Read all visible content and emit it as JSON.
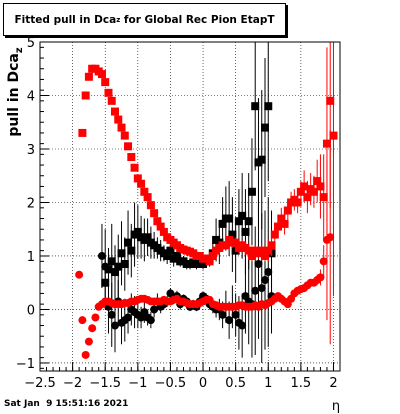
{
  "chart_data": {
    "type": "scatter",
    "title_main": "Fitted pull in Dca",
    "title_sub": "z",
    "title_rest": " for Global Rec Pion EtapT",
    "ylabel_main": "pull in Dca",
    "ylabel_sub": "z",
    "xlabel": "η",
    "xlim": [
      -2.5,
      2.1
    ],
    "ylim": [
      -1.15,
      5
    ],
    "xticks": [
      "−2.5",
      "−2",
      "−1.5",
      "−1",
      "−0.5",
      "0",
      "0.5",
      "1",
      "1.5",
      "2"
    ],
    "yticks": [
      "−1",
      "0",
      "1",
      "2",
      "3",
      "4",
      "5"
    ],
    "grid": true,
    "series": [
      {
        "color": "#000000",
        "marker": "square",
        "x": [
          -1.5,
          -1.45,
          -1.4,
          -1.35,
          -1.3,
          -1.25,
          -1.2,
          -1.15,
          -1.1,
          -1.05,
          -1.0,
          -0.95,
          -0.9,
          -0.85,
          -0.8,
          -0.75,
          -0.7,
          -0.65,
          -0.6,
          -0.55,
          -0.5,
          -0.45,
          -0.4,
          -0.35,
          -0.3,
          -0.25,
          -0.2,
          -0.15,
          -0.1,
          -0.05,
          0.0,
          0.05,
          0.1,
          0.15,
          0.2,
          0.25,
          0.3,
          0.35,
          0.4,
          0.45,
          0.5,
          0.55,
          0.6,
          0.65,
          0.7,
          0.75,
          0.8,
          0.85,
          0.9,
          0.95,
          1.0,
          1.05
        ],
        "y": [
          0.5,
          0.75,
          0.9,
          0.7,
          0.8,
          1.05,
          0.85,
          1.25,
          1.1,
          1.4,
          1.45,
          1.35,
          1.3,
          1.35,
          1.25,
          1.2,
          1.15,
          1.1,
          1.05,
          1.0,
          1.1,
          0.95,
          1.0,
          0.9,
          0.9,
          0.85,
          0.85,
          0.88,
          0.85,
          0.9,
          0.85,
          0.9,
          0.95,
          1.05,
          1.3,
          1.25,
          1.6,
          1.7,
          1.7,
          1.4,
          1.1,
          1.65,
          1.75,
          1.45,
          1.65,
          2.2,
          3.8,
          2.75,
          2.8,
          3.4,
          3.8,
          1.05
        ],
        "err": [
          0.5,
          0.4,
          0.7,
          0.5,
          0.6,
          0.6,
          0.5,
          0.6,
          0.5,
          0.6,
          0.5,
          0.4,
          0.4,
          0.35,
          0.3,
          0.25,
          0.2,
          0.2,
          0.15,
          0.15,
          0.15,
          0.15,
          0.12,
          0.1,
          0.1,
          0.1,
          0.1,
          0.1,
          0.1,
          0.1,
          0.1,
          0.1,
          0.15,
          0.2,
          0.4,
          0.4,
          0.5,
          0.6,
          0.7,
          0.7,
          0.6,
          0.6,
          0.8,
          0.8,
          0.9,
          1.0,
          1.2,
          1.2,
          1.3,
          1.3,
          1.4,
          0.8
        ]
      },
      {
        "color": "#000000",
        "marker": "circle",
        "x": [
          -1.55,
          -1.5,
          -1.45,
          -1.4,
          -1.35,
          -1.3,
          -1.25,
          -1.2,
          -1.15,
          -1.1,
          -1.05,
          -1.0,
          -0.95,
          -0.9,
          -0.85,
          -0.8,
          -0.75,
          -0.7,
          -0.65,
          -0.6,
          -0.55,
          -0.5,
          -0.45,
          -0.4,
          -0.35,
          -0.3,
          -0.25,
          -0.2,
          -0.15,
          -0.1,
          -0.05,
          0.0,
          0.05,
          0.1,
          0.15,
          0.2,
          0.25,
          0.3,
          0.35,
          0.4,
          0.45,
          0.5,
          0.55,
          0.6,
          0.65,
          0.7,
          0.75,
          0.8,
          0.85,
          0.9,
          0.95,
          1.0,
          1.05
        ],
        "y": [
          1.0,
          0.8,
          0.05,
          -0.1,
          -0.3,
          0.15,
          -0.25,
          -0.2,
          -0.15,
          0.0,
          -0.05,
          -0.1,
          -0.15,
          -0.05,
          -0.15,
          -0.2,
          0.0,
          0.15,
          0.05,
          0.1,
          0.15,
          0.3,
          0.2,
          0.25,
          0.1,
          0.2,
          0.15,
          0.05,
          0.1,
          0.05,
          0.15,
          0.25,
          0.2,
          0.1,
          0.05,
          0.0,
          0.0,
          -0.1,
          0.05,
          -0.2,
          0.05,
          -0.1,
          -0.25,
          -0.3,
          0.25,
          0.15,
          0.1,
          0.35,
          0.85,
          0.4,
          0.55,
          0.7,
          0.25
        ],
        "err": [
          0.6,
          0.7,
          0.5,
          0.6,
          0.5,
          0.4,
          0.4,
          0.4,
          0.3,
          0.3,
          0.3,
          0.25,
          0.2,
          0.2,
          0.15,
          0.15,
          0.15,
          0.15,
          0.12,
          0.1,
          0.1,
          0.1,
          0.1,
          0.1,
          0.1,
          0.08,
          0.08,
          0.08,
          0.08,
          0.08,
          0.08,
          0.08,
          0.1,
          0.1,
          0.12,
          0.15,
          0.2,
          0.25,
          0.3,
          0.35,
          0.4,
          0.4,
          0.5,
          0.6,
          0.7,
          0.8,
          1.0,
          1.2,
          1.4,
          1.4,
          1.3,
          1.4,
          0.7
        ]
      },
      {
        "color": "#ff0000",
        "marker": "square",
        "x": [
          -1.85,
          -1.8,
          -1.75,
          -1.7,
          -1.65,
          -1.6,
          -1.55,
          -1.5,
          -1.45,
          -1.4,
          -1.35,
          -1.3,
          -1.25,
          -1.2,
          -1.15,
          -1.1,
          -1.05,
          -1.0,
          -0.95,
          -0.9,
          -0.85,
          -0.8,
          -0.75,
          -0.7,
          -0.65,
          -0.6,
          -0.55,
          -0.5,
          -0.45,
          -0.4,
          -0.35,
          -0.3,
          -0.25,
          -0.2,
          -0.15,
          -0.1,
          -0.05,
          0.0,
          0.05,
          0.1,
          0.15,
          0.2,
          0.25,
          0.3,
          0.35,
          0.4,
          0.45,
          0.5,
          0.55,
          0.6,
          0.65,
          0.7,
          0.75,
          0.8,
          0.85,
          0.9,
          0.95,
          1.0,
          1.05,
          1.1,
          1.15,
          1.2,
          1.25,
          1.3,
          1.35,
          1.4,
          1.45,
          1.5,
          1.55,
          1.6,
          1.65,
          1.7,
          1.75,
          1.8,
          1.85,
          1.9,
          1.95,
          2.0
        ],
        "y": [
          3.3,
          4.0,
          4.35,
          4.5,
          4.5,
          4.45,
          4.4,
          4.25,
          4.05,
          3.9,
          3.7,
          3.55,
          3.4,
          3.25,
          3.05,
          2.85,
          2.65,
          2.45,
          2.35,
          2.2,
          2.1,
          1.95,
          1.8,
          1.65,
          1.55,
          1.45,
          1.35,
          1.3,
          1.25,
          1.2,
          1.15,
          1.12,
          1.1,
          1.08,
          1.05,
          1.0,
          1.0,
          0.95,
          0.95,
          0.9,
          1.0,
          1.1,
          1.15,
          1.2,
          1.2,
          1.3,
          1.25,
          1.25,
          1.15,
          1.2,
          1.15,
          1.1,
          1.0,
          1.1,
          1.05,
          1.1,
          1.0,
          1.1,
          1.2,
          1.4,
          1.55,
          1.7,
          1.6,
          1.85,
          2.0,
          2.05,
          2.0,
          2.2,
          2.3,
          2.1,
          2.25,
          2.2,
          2.4,
          2.3,
          2.1,
          3.1,
          3.9,
          3.25
        ],
        "err": [
          0.05,
          0.05,
          0.05,
          0.05,
          0.05,
          0.05,
          0.05,
          0.05,
          0.05,
          0.05,
          0.05,
          0.05,
          0.05,
          0.05,
          0.05,
          0.05,
          0.05,
          0.05,
          0.05,
          0.05,
          0.05,
          0.05,
          0.05,
          0.05,
          0.05,
          0.05,
          0.05,
          0.05,
          0.05,
          0.05,
          0.05,
          0.05,
          0.05,
          0.05,
          0.05,
          0.05,
          0.05,
          0.05,
          0.05,
          0.05,
          0.05,
          0.05,
          0.05,
          0.05,
          0.05,
          0.05,
          0.1,
          0.1,
          0.1,
          0.1,
          0.1,
          0.1,
          0.1,
          0.1,
          0.1,
          0.1,
          0.1,
          0.2,
          0.2,
          0.2,
          0.2,
          0.2,
          0.2,
          0.2,
          0.2,
          0.2,
          0.2,
          0.2,
          0.3,
          0.3,
          0.3,
          0.3,
          0.4,
          0.6,
          0.8,
          1.8,
          2.0,
          3.0
        ]
      },
      {
        "color": "#ff0000",
        "marker": "circle",
        "x": [
          -1.9,
          -1.85,
          -1.8,
          -1.75,
          -1.7,
          -1.65,
          -1.6,
          -1.55,
          -1.5,
          -1.45,
          -1.4,
          -1.35,
          -1.3,
          -1.25,
          -1.2,
          -1.15,
          -1.1,
          -1.05,
          -1.0,
          -0.95,
          -0.9,
          -0.85,
          -0.8,
          -0.75,
          -0.7,
          -0.65,
          -0.6,
          -0.55,
          -0.5,
          -0.45,
          -0.4,
          -0.35,
          -0.3,
          -0.25,
          -0.2,
          -0.15,
          -0.1,
          -0.05,
          0.0,
          0.05,
          0.1,
          0.15,
          0.2,
          0.25,
          0.3,
          0.35,
          0.4,
          0.45,
          0.5,
          0.55,
          0.6,
          0.65,
          0.7,
          0.75,
          0.8,
          0.85,
          0.9,
          0.95,
          1.0,
          1.05,
          1.1,
          1.15,
          1.2,
          1.25,
          1.3,
          1.35,
          1.4,
          1.45,
          1.5,
          1.55,
          1.6,
          1.65,
          1.7,
          1.75,
          1.8,
          1.85,
          1.9,
          1.95
        ],
        "y": [
          0.65,
          -0.2,
          -0.85,
          -0.6,
          -0.35,
          -0.15,
          0.05,
          0.1,
          0.15,
          0.15,
          0.12,
          0.1,
          0.1,
          0.1,
          0.12,
          0.12,
          0.15,
          0.15,
          0.18,
          0.2,
          0.2,
          0.18,
          0.15,
          0.15,
          0.15,
          0.15,
          0.18,
          0.15,
          0.15,
          0.18,
          0.2,
          0.15,
          0.15,
          0.12,
          0.1,
          0.1,
          0.1,
          0.12,
          0.15,
          0.18,
          0.18,
          0.1,
          0.08,
          0.05,
          0.05,
          0.05,
          0.05,
          0.05,
          0.05,
          0.08,
          0.08,
          0.05,
          0.05,
          0.05,
          0.08,
          0.05,
          0.1,
          0.08,
          0.12,
          0.15,
          0.2,
          0.25,
          0.2,
          0.15,
          0.1,
          0.2,
          0.3,
          0.35,
          0.38,
          0.4,
          0.45,
          0.5,
          0.5,
          0.55,
          0.6,
          0.9,
          1.3,
          1.35
        ],
        "err": [
          0.05,
          0.05,
          0.05,
          0.05,
          0.05,
          0.05,
          0.05,
          0.05,
          0.05,
          0.05,
          0.05,
          0.05,
          0.05,
          0.05,
          0.05,
          0.05,
          0.05,
          0.05,
          0.05,
          0.05,
          0.05,
          0.05,
          0.05,
          0.05,
          0.05,
          0.05,
          0.05,
          0.05,
          0.05,
          0.05,
          0.05,
          0.05,
          0.05,
          0.05,
          0.05,
          0.05,
          0.05,
          0.05,
          0.05,
          0.05,
          0.05,
          0.05,
          0.05,
          0.05,
          0.05,
          0.05,
          0.05,
          0.05,
          0.05,
          0.05,
          0.05,
          0.05,
          0.05,
          0.05,
          0.05,
          0.05,
          0.05,
          0.05,
          0.05,
          0.05,
          0.05,
          0.05,
          0.05,
          0.05,
          0.05,
          0.05,
          0.05,
          0.05,
          0.05,
          0.05,
          0.05,
          0.05,
          0.05,
          0.1,
          0.15,
          0.3,
          1.5,
          2.0
        ]
      }
    ]
  },
  "footer": "Sat Jan  9 15:51:16 2021"
}
